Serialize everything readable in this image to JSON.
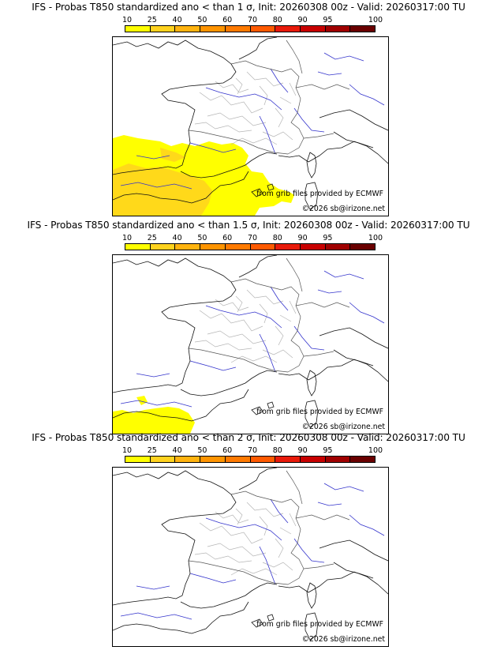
{
  "colorbar": {
    "labels": [
      "10",
      "25",
      "40",
      "50",
      "60",
      "70",
      "80",
      "90",
      "95",
      "100"
    ],
    "colors": [
      "#ffff00",
      "#ffd21e",
      "#ffb30f",
      "#ff9400",
      "#ff7a00",
      "#ff5a00",
      "#e81a0a",
      "#c80000",
      "#a00000",
      "#6a0000"
    ]
  },
  "panels": [
    {
      "title": "IFS - Probas T850  standardized ano < than 1 σ, Init: 20260308 00z - Valid: 20260317:00 TU",
      "credit_source": "from grib files provided by ECMWF",
      "credit_copyright": "©2026 sb@irizone.net",
      "coverage": "large"
    },
    {
      "title": "IFS - Probas T850  standardized ano < than 1.5 σ, Init: 20260308 00z - Valid: 20260317:00 TU",
      "credit_source": "from grib files provided by ECMWF",
      "credit_copyright": "©2026 sb@irizone.net",
      "coverage": "small"
    },
    {
      "title": "IFS - Probas T850  standardized ano < than 2 σ, Init: 20260308 00z - Valid: 20260317:00 TU",
      "credit_source": "from grib files provided by ECMWF",
      "credit_copyright": "©2026 sb@irizone.net",
      "coverage": "none"
    }
  ]
}
